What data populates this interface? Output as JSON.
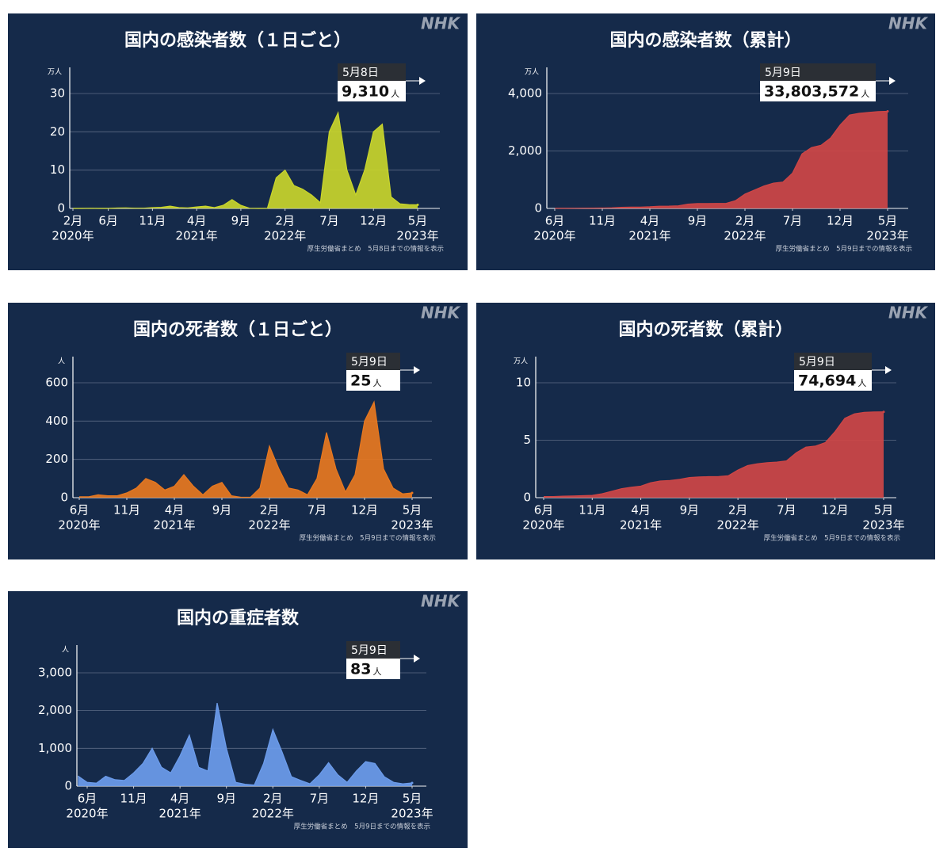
{
  "chart_data": [
    {
      "type": "area",
      "title": "国内の感染者数（１日ごと）",
      "logo": "NHK",
      "yunit": "万人",
      "color": "#c9d52b",
      "x": [
        "2020-02",
        "2020-03",
        "2020-04",
        "2020-05",
        "2020-06",
        "2020-07",
        "2020-08",
        "2020-09",
        "2020-10",
        "2020-11",
        "2020-12",
        "2021-01",
        "2021-02",
        "2021-03",
        "2021-04",
        "2021-05",
        "2021-06",
        "2021-07",
        "2021-08",
        "2021-09",
        "2021-10",
        "2021-11",
        "2021-12",
        "2022-01",
        "2022-02",
        "2022-03",
        "2022-04",
        "2022-05",
        "2022-06",
        "2022-07",
        "2022-08",
        "2022-09",
        "2022-10",
        "2022-11",
        "2022-12",
        "2023-01",
        "2023-02",
        "2023-03",
        "2023-04",
        "2023-05"
      ],
      "values": [
        0,
        0.01,
        0.05,
        0.01,
        0.01,
        0.1,
        0.15,
        0.06,
        0.07,
        0.2,
        0.3,
        0.6,
        0.2,
        0.15,
        0.4,
        0.6,
        0.2,
        0.8,
        2.3,
        0.8,
        0.05,
        0.01,
        0.02,
        8,
        10,
        6,
        5,
        3.5,
        1.5,
        20,
        25,
        10,
        3.5,
        10,
        20,
        22,
        3,
        1.2,
        1.0,
        0.931
      ],
      "ylim": [
        0,
        36
      ],
      "yticks": [
        0,
        10,
        20,
        30
      ],
      "xticks": [
        {
          "value": "2020-02",
          "label": "2月"
        },
        {
          "value": "2020-06",
          "label": "6月"
        },
        {
          "value": "2020-11",
          "label": "11月"
        },
        {
          "value": "2021-04",
          "label": "4月"
        },
        {
          "value": "2021-09",
          "label": "9月"
        },
        {
          "value": "2022-02",
          "label": "2月"
        },
        {
          "value": "2022-07",
          "label": "7月"
        },
        {
          "value": "2022-12",
          "label": "12月"
        },
        {
          "value": "2023-05",
          "label": "5月"
        }
      ],
      "xtick_years": [
        {
          "value": "2020-02",
          "label": "2020年"
        },
        {
          "value": "2021-04",
          "label": "2021年"
        },
        {
          "value": "2022-02",
          "label": "2022年"
        },
        {
          "value": "2023-05",
          "label": "2023年"
        }
      ],
      "annotation": {
        "date": "5月8日",
        "value": 0.931,
        "label": "9,310",
        "unit": "人"
      },
      "source": "厚生労働省まとめ　5月8日までの情報を表示"
    },
    {
      "type": "area",
      "title": "国内の感染者数（累計）",
      "logo": "NHK",
      "yunit": "万人",
      "color": "#cf4646",
      "x": [
        "2020-06",
        "2020-07",
        "2020-08",
        "2020-09",
        "2020-10",
        "2020-11",
        "2020-12",
        "2021-01",
        "2021-02",
        "2021-03",
        "2021-04",
        "2021-05",
        "2021-06",
        "2021-07",
        "2021-08",
        "2021-09",
        "2021-10",
        "2021-11",
        "2021-12",
        "2022-01",
        "2022-02",
        "2022-03",
        "2022-04",
        "2022-05",
        "2022-06",
        "2022-07",
        "2022-08",
        "2022-09",
        "2022-10",
        "2022-11",
        "2022-12",
        "2023-01",
        "2023-02",
        "2023-03",
        "2023-04",
        "2023-05"
      ],
      "values": [
        1.8,
        3.5,
        6.8,
        8.3,
        10,
        15,
        23,
        39,
        43,
        47,
        59,
        76,
        80,
        92,
        150,
        170,
        172,
        173,
        173,
        270,
        500,
        640,
        780,
        880,
        920,
        1230,
        1900,
        2120,
        2200,
        2450,
        2900,
        3250,
        3310,
        3340,
        3370,
        3380.3572
      ],
      "ylim": [
        0,
        4800
      ],
      "yticks": [
        0,
        {
          "value": 2000,
          "label": "2,000"
        },
        {
          "value": 4000,
          "label": "4,000"
        }
      ],
      "xticks": [
        {
          "value": "2020-06",
          "label": "6月"
        },
        {
          "value": "2020-11",
          "label": "11月"
        },
        {
          "value": "2021-04",
          "label": "4月"
        },
        {
          "value": "2021-09",
          "label": "9月"
        },
        {
          "value": "2022-02",
          "label": "2月"
        },
        {
          "value": "2022-07",
          "label": "7月"
        },
        {
          "value": "2022-12",
          "label": "12月"
        },
        {
          "value": "2023-05",
          "label": "5月"
        }
      ],
      "xtick_years": [
        {
          "value": "2020-06",
          "label": "2020年"
        },
        {
          "value": "2021-04",
          "label": "2021年"
        },
        {
          "value": "2022-02",
          "label": "2022年"
        },
        {
          "value": "2023-05",
          "label": "2023年"
        }
      ],
      "annotation": {
        "date": "5月9日",
        "value": 3380.3572,
        "label": "33,803,572",
        "unit": "人"
      },
      "source": "厚生労働省まとめ　5月9日までの情報を表示"
    },
    {
      "type": "area",
      "title": "国内の死者数（１日ごと）",
      "logo": "NHK",
      "yunit": "人",
      "color": "#e8781f",
      "x": [
        "2020-06",
        "2020-07",
        "2020-08",
        "2020-09",
        "2020-10",
        "2020-11",
        "2020-12",
        "2021-01",
        "2021-02",
        "2021-03",
        "2021-04",
        "2021-05",
        "2021-06",
        "2021-07",
        "2021-08",
        "2021-09",
        "2021-10",
        "2021-11",
        "2021-12",
        "2022-01",
        "2022-02",
        "2022-03",
        "2022-04",
        "2022-05",
        "2022-06",
        "2022-07",
        "2022-08",
        "2022-09",
        "2022-10",
        "2022-11",
        "2022-12",
        "2023-01",
        "2023-02",
        "2023-03",
        "2023-04",
        "2023-05"
      ],
      "values": [
        5,
        5,
        15,
        10,
        10,
        25,
        50,
        100,
        80,
        40,
        60,
        120,
        60,
        15,
        60,
        80,
        10,
        2,
        2,
        50,
        270,
        150,
        50,
        40,
        15,
        100,
        340,
        150,
        30,
        120,
        400,
        500,
        150,
        50,
        20,
        25
      ],
      "ylim": [
        0,
        720
      ],
      "yticks": [
        0,
        200,
        400,
        600
      ],
      "xticks": [
        {
          "value": "2020-06",
          "label": "6月"
        },
        {
          "value": "2020-11",
          "label": "11月"
        },
        {
          "value": "2021-04",
          "label": "4月"
        },
        {
          "value": "2021-09",
          "label": "9月"
        },
        {
          "value": "2022-02",
          "label": "2月"
        },
        {
          "value": "2022-07",
          "label": "7月"
        },
        {
          "value": "2022-12",
          "label": "12月"
        },
        {
          "value": "2023-05",
          "label": "5月"
        }
      ],
      "xtick_years": [
        {
          "value": "2020-06",
          "label": "2020年"
        },
        {
          "value": "2021-04",
          "label": "2021年"
        },
        {
          "value": "2022-02",
          "label": "2022年"
        },
        {
          "value": "2023-05",
          "label": "2023年"
        }
      ],
      "annotation": {
        "date": "5月9日",
        "value": 25,
        "label": "25",
        "unit": "人"
      },
      "source": "厚生労働省まとめ　5月9日までの情報を表示"
    },
    {
      "type": "area",
      "title": "国内の死者数（累計）",
      "logo": "NHK",
      "yunit": "万人",
      "color": "#cf4646",
      "x": [
        "2020-06",
        "2020-07",
        "2020-08",
        "2020-09",
        "2020-10",
        "2020-11",
        "2020-12",
        "2021-01",
        "2021-02",
        "2021-03",
        "2021-04",
        "2021-05",
        "2021-06",
        "2021-07",
        "2021-08",
        "2021-09",
        "2021-10",
        "2021-11",
        "2021-12",
        "2022-01",
        "2022-02",
        "2022-03",
        "2022-04",
        "2022-05",
        "2022-06",
        "2022-07",
        "2022-08",
        "2022-09",
        "2022-10",
        "2022-11",
        "2022-12",
        "2023-01",
        "2023-02",
        "2023-03",
        "2023-04",
        "2023-05"
      ],
      "values": [
        0.1,
        0.1,
        0.13,
        0.15,
        0.17,
        0.2,
        0.34,
        0.56,
        0.78,
        0.9,
        1.0,
        1.3,
        1.45,
        1.5,
        1.6,
        1.75,
        1.8,
        1.83,
        1.84,
        1.9,
        2.4,
        2.8,
        2.95,
        3.05,
        3.1,
        3.2,
        3.9,
        4.4,
        4.5,
        4.8,
        5.75,
        6.9,
        7.3,
        7.42,
        7.46,
        7.4694
      ],
      "ylim": [
        0,
        12
      ],
      "yticks": [
        0,
        5,
        10
      ],
      "xticks": [
        {
          "value": "2020-06",
          "label": "6月"
        },
        {
          "value": "2020-11",
          "label": "11月"
        },
        {
          "value": "2021-04",
          "label": "4月"
        },
        {
          "value": "2021-09",
          "label": "9月"
        },
        {
          "value": "2022-02",
          "label": "2月"
        },
        {
          "value": "2022-07",
          "label": "7月"
        },
        {
          "value": "2022-12",
          "label": "12月"
        },
        {
          "value": "2023-05",
          "label": "5月"
        }
      ],
      "xtick_years": [
        {
          "value": "2020-06",
          "label": "2020年"
        },
        {
          "value": "2021-04",
          "label": "2021年"
        },
        {
          "value": "2022-02",
          "label": "2022年"
        },
        {
          "value": "2023-05",
          "label": "2023年"
        }
      ],
      "annotation": {
        "date": "5月9日",
        "value": 7.4694,
        "label": "74,694",
        "unit": "人"
      },
      "source": "厚生労働省まとめ　5月9日までの情報を表示"
    },
    {
      "type": "area",
      "title": "国内の重症者数",
      "logo": "NHK",
      "yunit": "人",
      "color": "#6c9ceb",
      "x": [
        "2020-05",
        "2020-06",
        "2020-07",
        "2020-08",
        "2020-09",
        "2020-10",
        "2020-11",
        "2020-12",
        "2021-01",
        "2021-02",
        "2021-03",
        "2021-04",
        "2021-05",
        "2021-06",
        "2021-07",
        "2021-08",
        "2021-09",
        "2021-10",
        "2021-11",
        "2021-12",
        "2022-01",
        "2022-02",
        "2022-03",
        "2022-04",
        "2022-05",
        "2022-06",
        "2022-07",
        "2022-08",
        "2022-09",
        "2022-10",
        "2022-11",
        "2022-12",
        "2023-01",
        "2023-02",
        "2023-03",
        "2023-04",
        "2023-05"
      ],
      "values": [
        270,
        100,
        80,
        260,
        170,
        150,
        350,
        600,
        1000,
        500,
        350,
        800,
        1350,
        500,
        400,
        2200,
        1000,
        100,
        50,
        30,
        600,
        1500,
        900,
        250,
        150,
        60,
        300,
        620,
        300,
        100,
        400,
        650,
        600,
        250,
        100,
        60,
        83
      ],
      "ylim": [
        0,
        3650
      ],
      "yticks": [
        0,
        {
          "value": 1000,
          "label": "1,000"
        },
        {
          "value": 2000,
          "label": "2,000"
        },
        {
          "value": 3000,
          "label": "3,000"
        }
      ],
      "xticks": [
        {
          "value": "2020-06",
          "label": "6月"
        },
        {
          "value": "2020-11",
          "label": "11月"
        },
        {
          "value": "2021-04",
          "label": "4月"
        },
        {
          "value": "2021-09",
          "label": "9月"
        },
        {
          "value": "2022-02",
          "label": "2月"
        },
        {
          "value": "2022-07",
          "label": "7月"
        },
        {
          "value": "2022-12",
          "label": "12月"
        },
        {
          "value": "2023-05",
          "label": "5月"
        }
      ],
      "xtick_years": [
        {
          "value": "2020-06",
          "label": "2020年"
        },
        {
          "value": "2021-04",
          "label": "2021年"
        },
        {
          "value": "2022-02",
          "label": "2022年"
        },
        {
          "value": "2023-05",
          "label": "2023年"
        }
      ],
      "annotation": {
        "date": "5月9日",
        "value": 83,
        "label": "83",
        "unit": "人"
      },
      "source": "厚生労働省まとめ　5月9日までの情報を表示"
    }
  ]
}
